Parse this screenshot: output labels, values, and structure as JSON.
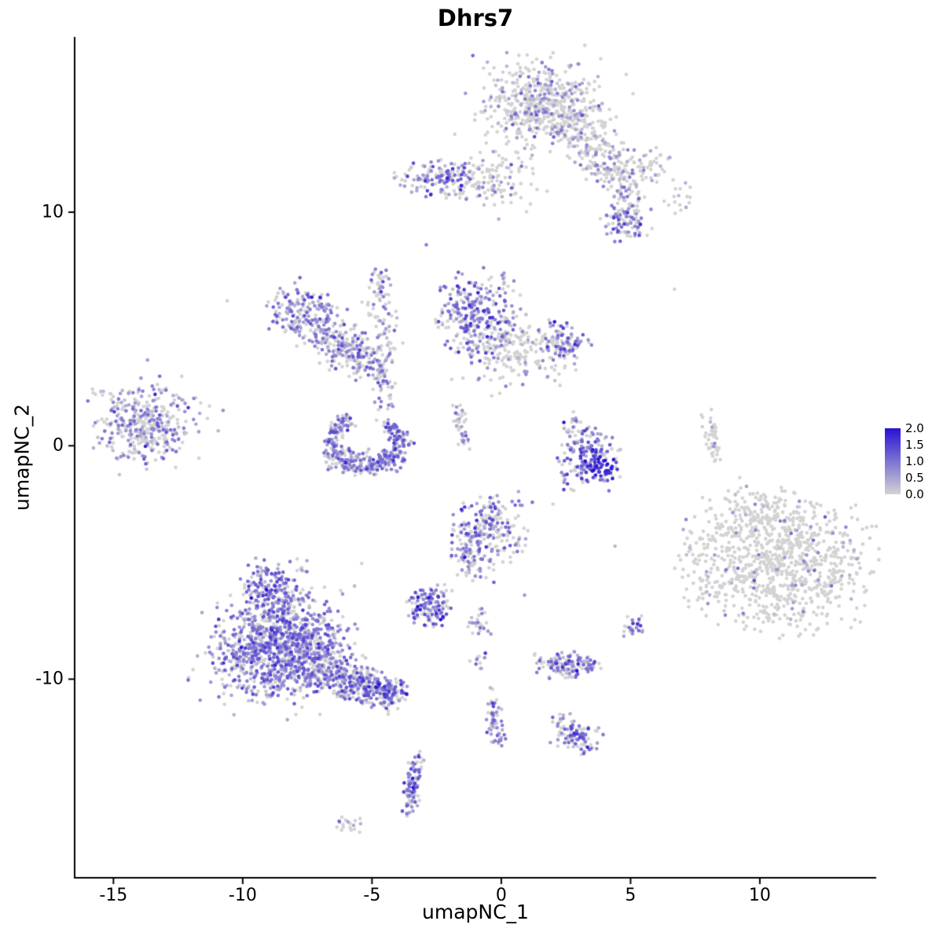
{
  "chart_data": {
    "type": "scatter",
    "title": "Dhrs7",
    "xlabel": "umapNC_1",
    "ylabel": "umapNC_2",
    "xlim": [
      -16.5,
      14.5
    ],
    "ylim": [
      -18.5,
      17.5
    ],
    "x_ticks": [
      -15,
      -10,
      -5,
      0,
      5,
      10
    ],
    "y_ticks": [
      -10,
      0,
      10
    ],
    "grid": false,
    "value_range": [
      0,
      2
    ],
    "point_radius_px": 2.3,
    "colors": {
      "low": "#d3d3d3",
      "high": "#2612d2",
      "axis": "#000000"
    },
    "legend": {
      "position": "right",
      "labels": [
        "2.0",
        "1.5",
        "1.0",
        "0.5",
        "0.0"
      ],
      "values": [
        2.0,
        1.5,
        1.0,
        0.5,
        0.0
      ]
    },
    "clusters": [
      {
        "name": "top-main",
        "cx": 1.6,
        "cy": 14.6,
        "sx": 1.05,
        "sy": 0.85,
        "rot": 0,
        "n": 420,
        "zero": 0.7,
        "mu": 0.55,
        "sd": 0.35
      },
      {
        "name": "top-main-fringe",
        "cx": 1.6,
        "cy": 14.4,
        "sx": 1.6,
        "sy": 1.3,
        "rot": 0,
        "n": 120,
        "zero": 0.8,
        "mu": 0.5,
        "sd": 0.3
      },
      {
        "name": "top-tail",
        "cx": 3.3,
        "cy": 12.9,
        "sx": 0.9,
        "sy": 0.55,
        "rot": -35,
        "n": 150,
        "zero": 0.75,
        "mu": 0.5,
        "sd": 0.3
      },
      {
        "name": "top-tail2",
        "cx": 4.6,
        "cy": 11.6,
        "sx": 0.7,
        "sy": 0.5,
        "rot": -30,
        "n": 110,
        "zero": 0.7,
        "mu": 0.6,
        "sd": 0.35
      },
      {
        "name": "top-right-sparse",
        "cx": 5.9,
        "cy": 12.1,
        "sx": 0.5,
        "sy": 0.4,
        "rot": 0,
        "n": 30,
        "zero": 0.85,
        "mu": 0.4,
        "sd": 0.2
      },
      {
        "name": "top-right-sparse2",
        "cx": 6.8,
        "cy": 10.6,
        "sx": 0.35,
        "sy": 0.4,
        "rot": 0,
        "n": 16,
        "zero": 0.8,
        "mu": 0.4,
        "sd": 0.2
      },
      {
        "name": "top-bridge",
        "cx": 4.9,
        "cy": 10.4,
        "sx": 0.3,
        "sy": 0.4,
        "rot": 0,
        "n": 25,
        "zero": 0.6,
        "mu": 0.6,
        "sd": 0.3
      },
      {
        "name": "right-clump-9",
        "cx": 4.8,
        "cy": 9.5,
        "sx": 0.5,
        "sy": 0.4,
        "rot": 0,
        "n": 80,
        "zero": 0.45,
        "mu": 0.8,
        "sd": 0.4
      },
      {
        "name": "band-left",
        "cx": -2.4,
        "cy": 11.4,
        "sx": 0.8,
        "sy": 0.4,
        "rot": 0,
        "n": 130,
        "zero": 0.45,
        "mu": 0.75,
        "sd": 0.4
      },
      {
        "name": "band-right",
        "cx": -0.4,
        "cy": 11.2,
        "sx": 1.0,
        "sy": 0.45,
        "rot": -10,
        "n": 90,
        "zero": 0.7,
        "mu": 0.55,
        "sd": 0.3
      },
      {
        "name": "band-top-sparse",
        "cx": 0.3,
        "cy": 12.1,
        "sx": 0.6,
        "sy": 0.35,
        "rot": 0,
        "n": 25,
        "zero": 0.75,
        "mu": 0.5,
        "sd": 0.3
      },
      {
        "name": "midleft-a",
        "cx": -7.6,
        "cy": 5.7,
        "sx": 0.75,
        "sy": 0.65,
        "rot": -30,
        "n": 170,
        "zero": 0.35,
        "mu": 0.8,
        "sd": 0.4
      },
      {
        "name": "midleft-b",
        "cx": -6.4,
        "cy": 4.5,
        "sx": 0.7,
        "sy": 0.55,
        "rot": -35,
        "n": 130,
        "zero": 0.5,
        "mu": 0.65,
        "sd": 0.35
      },
      {
        "name": "midleft-c",
        "cx": -5.3,
        "cy": 3.7,
        "sx": 0.55,
        "sy": 0.5,
        "rot": -30,
        "n": 110,
        "zero": 0.45,
        "mu": 0.85,
        "sd": 0.4
      },
      {
        "name": "midleft-strand",
        "cx": -4.6,
        "cy": 5.2,
        "sx": 0.3,
        "sy": 0.95,
        "rot": 10,
        "n": 55,
        "zero": 0.55,
        "mu": 0.7,
        "sd": 0.35
      },
      {
        "name": "midleft-strand-top",
        "cx": -4.7,
        "cy": 6.9,
        "sx": 0.2,
        "sy": 0.45,
        "rot": 0,
        "n": 30,
        "zero": 0.45,
        "mu": 0.8,
        "sd": 0.4
      },
      {
        "name": "connector-u",
        "cx": -4.55,
        "cy": 2.6,
        "sx": 0.22,
        "sy": 0.7,
        "rot": 5,
        "n": 40,
        "zero": 0.5,
        "mu": 0.7,
        "sd": 0.35
      },
      {
        "name": "mid-main",
        "cx": -0.9,
        "cy": 5.6,
        "sx": 0.8,
        "sy": 0.95,
        "rot": 0,
        "n": 280,
        "zero": 0.3,
        "mu": 0.9,
        "sd": 0.45
      },
      {
        "name": "mid-right",
        "cx": 0.9,
        "cy": 4.3,
        "sx": 1.15,
        "sy": 0.6,
        "rot": -15,
        "n": 170,
        "zero": 0.75,
        "mu": 0.5,
        "sd": 0.3
      },
      {
        "name": "mid-right-clump",
        "cx": 2.4,
        "cy": 4.4,
        "sx": 0.45,
        "sy": 0.45,
        "rot": 0,
        "n": 90,
        "zero": 0.4,
        "mu": 0.85,
        "sd": 0.4
      },
      {
        "name": "mid-below-sparse",
        "cx": -0.2,
        "cy": 3.1,
        "sx": 0.8,
        "sy": 0.5,
        "rot": 0,
        "n": 30,
        "zero": 0.7,
        "mu": 0.5,
        "sd": 0.3
      },
      {
        "name": "left-main",
        "cx": -13.9,
        "cy": 0.9,
        "sx": 0.9,
        "sy": 0.8,
        "rot": 20,
        "n": 320,
        "zero": 0.45,
        "mu": 0.7,
        "sd": 0.35
      },
      {
        "name": "left-fringe",
        "cx": -13.5,
        "cy": 1.2,
        "sx": 1.3,
        "sy": 1.1,
        "rot": 20,
        "n": 60,
        "zero": 0.6,
        "mu": 0.5,
        "sd": 0.3
      },
      {
        "name": "u-arc",
        "type": "arc",
        "cx": -5.25,
        "cy": 0.15,
        "rx": 1.3,
        "ry": 1.1,
        "a0": 115,
        "a1": 415,
        "w": 0.16,
        "n": 300,
        "zero": 0.3,
        "mu": 0.85,
        "sd": 0.4
      },
      {
        "name": "u-fill",
        "cx": -5.25,
        "cy": -0.65,
        "sx": 0.75,
        "sy": 0.3,
        "rot": 0,
        "n": 70,
        "zero": 0.4,
        "mu": 0.7,
        "sd": 0.4
      },
      {
        "name": "strand-center",
        "cx": -1.55,
        "cy": 0.75,
        "sx": 0.14,
        "sy": 0.5,
        "rot": 12,
        "n": 40,
        "zero": 0.5,
        "mu": 0.7,
        "sd": 0.4
      },
      {
        "name": "rightmid-main",
        "cx": 3.3,
        "cy": -0.4,
        "sx": 0.6,
        "sy": 0.7,
        "rot": 0,
        "n": 170,
        "zero": 0.3,
        "mu": 0.9,
        "sd": 0.5
      },
      {
        "name": "rightmid-hot",
        "cx": 3.9,
        "cy": -0.9,
        "sx": 0.3,
        "sy": 0.3,
        "rot": 0,
        "n": 45,
        "zero": 0.05,
        "mu": 1.7,
        "sd": 0.3
      },
      {
        "name": "rightmid-top-sparse",
        "cx": 2.9,
        "cy": 0.9,
        "sx": 0.3,
        "sy": 0.4,
        "rot": 0,
        "n": 15,
        "zero": 0.5,
        "mu": 0.7,
        "sd": 0.3
      },
      {
        "name": "strand-right",
        "cx": 8.15,
        "cy": 0.3,
        "sx": 0.14,
        "sy": 0.6,
        "rot": 8,
        "n": 45,
        "zero": 0.85,
        "mu": 0.4,
        "sd": 0.25
      },
      {
        "name": "right-big",
        "cx": 10.6,
        "cy": -5.0,
        "sx": 1.75,
        "sy": 1.45,
        "rot": -15,
        "n": 950,
        "zero": 0.92,
        "mu": 0.5,
        "sd": 0.35
      },
      {
        "name": "right-big-top",
        "cx": 10.3,
        "cy": -2.8,
        "sx": 0.9,
        "sy": 0.5,
        "rot": 0,
        "n": 60,
        "zero": 0.9,
        "mu": 0.4,
        "sd": 0.25
      },
      {
        "name": "midlow-main",
        "cx": -0.5,
        "cy": -3.6,
        "sx": 0.8,
        "sy": 0.75,
        "rot": 0,
        "n": 210,
        "zero": 0.45,
        "mu": 0.8,
        "sd": 0.4
      },
      {
        "name": "midlow-tail",
        "cx": -1.1,
        "cy": -5.0,
        "sx": 0.4,
        "sy": 0.6,
        "rot": 20,
        "n": 60,
        "zero": 0.55,
        "mu": 0.6,
        "sd": 0.35
      },
      {
        "name": "small-purple",
        "cx": -2.75,
        "cy": -6.9,
        "sx": 0.42,
        "sy": 0.45,
        "rot": 0,
        "n": 120,
        "zero": 0.22,
        "mu": 1.0,
        "sd": 0.45
      },
      {
        "name": "tiny-mid1",
        "cx": -0.8,
        "cy": -7.6,
        "sx": 0.22,
        "sy": 0.3,
        "rot": 0,
        "n": 25,
        "zero": 0.4,
        "mu": 0.8,
        "sd": 0.4
      },
      {
        "name": "tiny-mid2",
        "cx": -0.9,
        "cy": -9.1,
        "sx": 0.2,
        "sy": 0.25,
        "rot": 0,
        "n": 12,
        "zero": 0.4,
        "mu": 0.8,
        "sd": 0.4
      },
      {
        "name": "bottomleft-main",
        "cx": -8.6,
        "cy": -8.6,
        "sx": 1.25,
        "sy": 1.05,
        "rot": 10,
        "n": 950,
        "zero": 0.25,
        "mu": 0.8,
        "sd": 0.4
      },
      {
        "name": "bottomleft-knob",
        "cx": -8.8,
        "cy": -6.1,
        "sx": 0.6,
        "sy": 0.6,
        "rot": 0,
        "n": 170,
        "zero": 0.3,
        "mu": 0.85,
        "sd": 0.4
      },
      {
        "name": "bottomleft-fringe",
        "cx": -8.3,
        "cy": -8.6,
        "sx": 1.9,
        "sy": 1.5,
        "rot": 10,
        "n": 150,
        "zero": 0.45,
        "mu": 0.6,
        "sd": 0.35
      },
      {
        "name": "bottomleft-tail1",
        "cx": -6.4,
        "cy": -9.8,
        "sx": 0.8,
        "sy": 0.45,
        "rot": -28,
        "n": 200,
        "zero": 0.35,
        "mu": 0.75,
        "sd": 0.4
      },
      {
        "name": "bottomleft-tail2",
        "cx": -5.0,
        "cy": -10.4,
        "sx": 0.7,
        "sy": 0.4,
        "rot": -25,
        "n": 150,
        "zero": 0.35,
        "mu": 0.85,
        "sd": 0.4
      },
      {
        "name": "bottomleft-tail-end",
        "cx": -4.3,
        "cy": -10.6,
        "sx": 0.35,
        "sy": 0.3,
        "rot": 0,
        "n": 70,
        "zero": 0.25,
        "mu": 1.0,
        "sd": 0.45
      },
      {
        "name": "bottom-small-h",
        "cx": 2.55,
        "cy": -9.4,
        "sx": 0.6,
        "sy": 0.28,
        "rot": 0,
        "n": 130,
        "zero": 0.3,
        "mu": 0.85,
        "sd": 0.4
      },
      {
        "name": "bottom-tiny-right",
        "cx": 5.05,
        "cy": -7.8,
        "sx": 0.22,
        "sy": 0.26,
        "rot": 0,
        "n": 28,
        "zero": 0.3,
        "mu": 0.9,
        "sd": 0.5
      },
      {
        "name": "strand-bottom-mid",
        "cx": -0.25,
        "cy": -11.7,
        "sx": 0.16,
        "sy": 0.65,
        "rot": 5,
        "n": 60,
        "zero": 0.4,
        "mu": 0.7,
        "sd": 0.4
      },
      {
        "name": "bottom-clump",
        "cx": 3.0,
        "cy": -12.5,
        "sx": 0.45,
        "sy": 0.3,
        "rot": -20,
        "n": 85,
        "zero": 0.3,
        "mu": 0.85,
        "sd": 0.4
      },
      {
        "name": "bottom-clump-tail",
        "cx": 2.4,
        "cy": -11.7,
        "sx": 0.2,
        "sy": 0.4,
        "rot": 0,
        "n": 20,
        "zero": 0.5,
        "mu": 0.6,
        "sd": 0.3
      },
      {
        "name": "strand-bottom-left",
        "cx": -3.45,
        "cy": -14.5,
        "sx": 0.18,
        "sy": 0.68,
        "rot": -5,
        "n": 85,
        "zero": 0.3,
        "mu": 0.9,
        "sd": 0.4
      },
      {
        "name": "tiny-bottom",
        "cx": -5.9,
        "cy": -16.2,
        "sx": 0.3,
        "sy": 0.16,
        "rot": 0,
        "n": 18,
        "zero": 0.55,
        "mu": 0.6,
        "sd": 0.3
      }
    ],
    "singletons": [
      {
        "x": -10.6,
        "y": 6.2,
        "v": 0
      },
      {
        "x": 6.7,
        "y": 6.7,
        "v": 0
      },
      {
        "x": -2.9,
        "y": 8.6,
        "v": 0.9
      },
      {
        "x": -0.1,
        "y": 9.7,
        "v": 0.4
      },
      {
        "x": 4.4,
        "y": -4.3,
        "v": 0.3
      },
      {
        "x": 2.0,
        "y": -2.5,
        "v": 0
      },
      {
        "x": 0.9,
        "y": -6.4,
        "v": 0.6
      }
    ]
  }
}
